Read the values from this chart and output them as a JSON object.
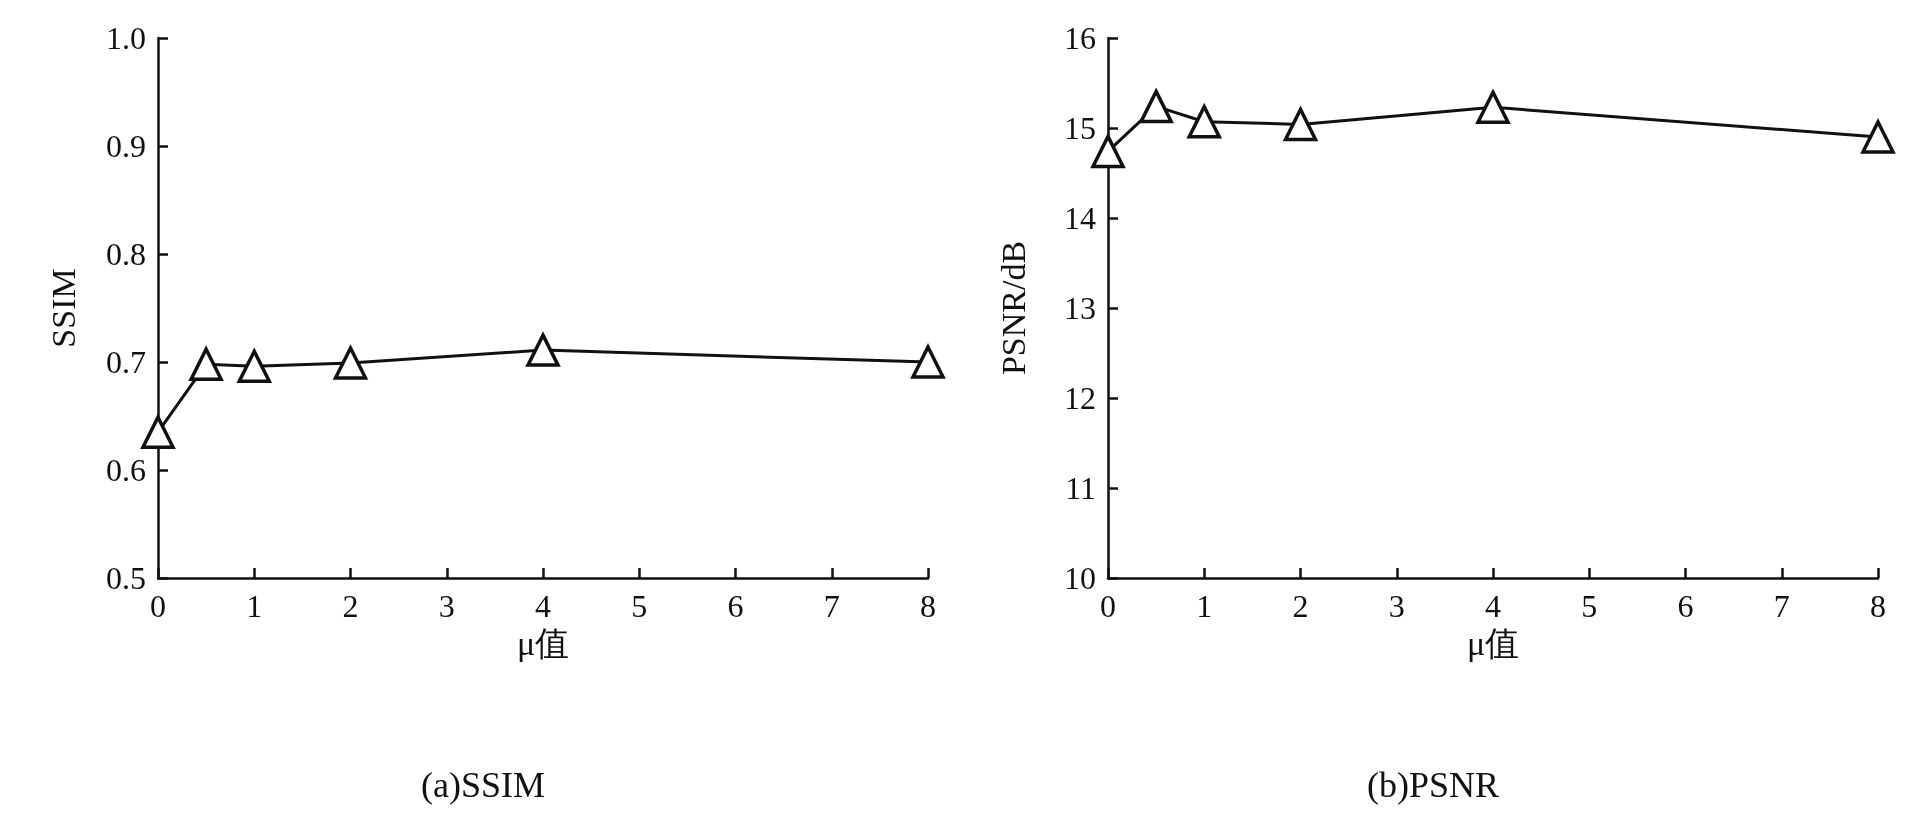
{
  "chart_data": [
    {
      "type": "line",
      "title": "(a)SSIM",
      "xlabel": "μ值",
      "ylabel": "SSIM",
      "x": [
        0,
        0.5,
        1,
        2,
        4,
        8
      ],
      "series": [
        {
          "color": "#111111",
          "values": [
            0.635,
            0.698,
            0.696,
            0.699,
            0.711,
            0.7
          ]
        }
      ],
      "xlim": [
        0,
        8
      ],
      "xticks": [
        0,
        1,
        2,
        3,
        4,
        5,
        6,
        7,
        8
      ],
      "ylim": [
        0.5,
        1.0
      ],
      "yticks": [
        {
          "value": 0.5,
          "label": "0.5"
        },
        {
          "value": 0.6,
          "label": "0.6"
        },
        {
          "value": 0.7,
          "label": "0.7"
        },
        {
          "value": 0.8,
          "label": "0.8"
        },
        {
          "value": 0.9,
          "label": "0.9"
        },
        {
          "value": 1.0,
          "label": "1.0"
        }
      ],
      "grid": false,
      "marker": "triangle",
      "line_style": "solid"
    },
    {
      "type": "line",
      "title": "(b)PSNR",
      "xlabel": "μ值",
      "ylabel": "PSNR/dB",
      "x": [
        0,
        0.5,
        1,
        2,
        4,
        8
      ],
      "series": [
        {
          "color": "#111111",
          "values": [
            14.74,
            15.24,
            15.07,
            15.04,
            15.23,
            14.9
          ]
        }
      ],
      "xlim": [
        0,
        8
      ],
      "xticks": [
        0,
        1,
        2,
        3,
        4,
        5,
        6,
        7,
        8
      ],
      "ylim": [
        10,
        16
      ],
      "yticks": [
        10,
        11,
        12,
        13,
        14,
        15,
        16
      ],
      "grid": false,
      "marker": "triangle",
      "line_style": "solid"
    }
  ]
}
